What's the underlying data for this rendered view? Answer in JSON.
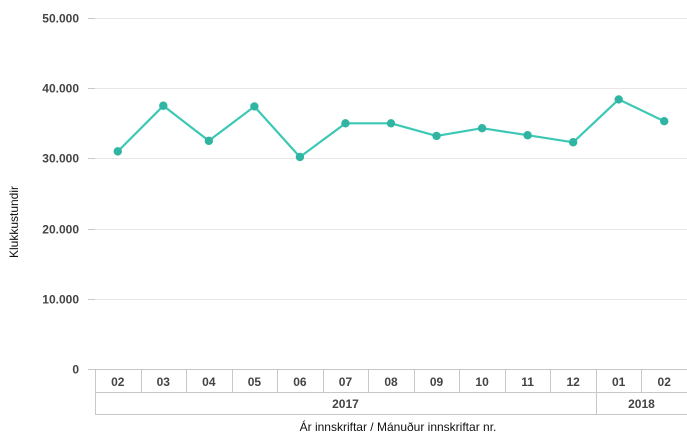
{
  "chart_data": {
    "type": "line",
    "ylabel": "Klukkustundir",
    "xlabel": "Ár innskriftar / Mánuður innskriftar nr.",
    "ylim": [
      0,
      50000
    ],
    "yticks": [
      "0",
      "10.000",
      "20.000",
      "30.000",
      "40.000",
      "50.000"
    ],
    "ytick_values": [
      0,
      10000,
      20000,
      30000,
      40000,
      50000
    ],
    "categories": [
      "02",
      "03",
      "04",
      "05",
      "06",
      "07",
      "08",
      "09",
      "10",
      "11",
      "12",
      "01",
      "02"
    ],
    "groups": [
      {
        "label": "2017",
        "count": 11
      },
      {
        "label": "2018",
        "count": 2
      }
    ],
    "series": [
      {
        "values": [
          31000,
          37500,
          32500,
          37400,
          30200,
          35000,
          35000,
          33200,
          34300,
          33300,
          32300,
          38400,
          35300
        ]
      }
    ],
    "grid": true,
    "legend": "none"
  },
  "colors": {
    "line": "#3cc8b4",
    "marker": "#2fb5a2",
    "grid": "#e6e6e6",
    "axis": "#c8c8c8"
  }
}
